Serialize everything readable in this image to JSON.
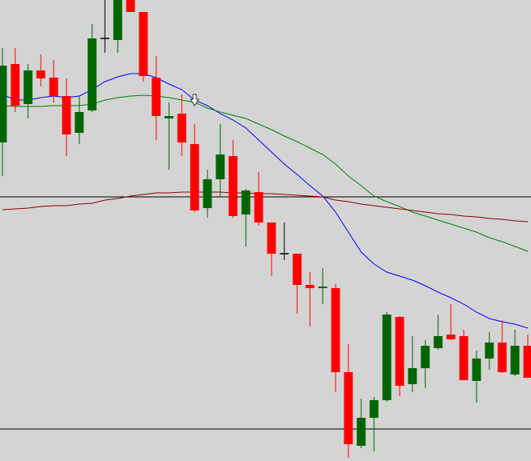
{
  "chart_data": {
    "type": "candlestick",
    "ylim": [
      0,
      576
    ],
    "open": [
      398,
      496,
      446,
      488,
      479,
      456,
      410,
      438,
      528,
      526,
      576,
      561,
      479,
      428,
      434,
      396,
      316,
      352,
      381,
      308,
      336,
      298,
      259,
      259,
      220,
      216,
      216,
      111,
      19,
      54,
      76,
      180,
      96,
      116,
      141,
      158,
      156,
      100,
      128,
      148,
      108,
      144
    ],
    "high": [
      516,
      516,
      496,
      508,
      501,
      478,
      456,
      546,
      576,
      576,
      576,
      561,
      506,
      448,
      458,
      421,
      364,
      421,
      401,
      340,
      361,
      298,
      298,
      259,
      236,
      241,
      221,
      146,
      78,
      80,
      186,
      181,
      156,
      151,
      183,
      196,
      164,
      138,
      161,
      176,
      164,
      158
    ],
    "low": [
      356,
      436,
      428,
      468,
      448,
      381,
      396,
      436,
      510,
      510,
      561,
      474,
      401,
      364,
      381,
      311,
      304,
      331,
      304,
      268,
      294,
      231,
      251,
      184,
      168,
      196,
      86,
      4,
      16,
      12,
      74,
      81,
      86,
      91,
      139,
      151,
      101,
      73,
      114,
      110,
      106,
      104
    ],
    "close": [
      494,
      444,
      488,
      478,
      456,
      408,
      436,
      528,
      528,
      576,
      561,
      481,
      431,
      431,
      398,
      313,
      352,
      383,
      306,
      338,
      298,
      259,
      259,
      220,
      216,
      218,
      111,
      21,
      54,
      76,
      183,
      94,
      116,
      144,
      156,
      152,
      101,
      128,
      148,
      111,
      144,
      104
    ],
    "up_color": "#006400",
    "down_color": "#ff0000",
    "doji_color": "#000000",
    "series": [
      {
        "color": "#0000ff",
        "values": [
          458,
          451,
          451,
          454,
          456,
          454,
          456,
          464,
          474,
          480,
          484,
          484,
          479,
          471,
          464,
          451,
          444,
          434,
          426,
          416,
          401,
          386,
          371,
          358,
          344,
          331,
          311,
          286,
          261,
          246,
          236,
          231,
          226,
          219,
          211,
          204,
          196,
          186,
          178,
          174,
          171,
          166
        ]
      },
      {
        "color": "#008000",
        "values": [
          444,
          443,
          443,
          443,
          444,
          444,
          444,
          446,
          451,
          454,
          456,
          457,
          456,
          454,
          451,
          448,
          441,
          436,
          432,
          428,
          421,
          414,
          406,
          399,
          391,
          383,
          371,
          356,
          344,
          331,
          324,
          318,
          311,
          306,
          301,
          296,
          291,
          286,
          279,
          274,
          268,
          262
        ]
      },
      {
        "color": "#8b0000",
        "values": [
          314,
          315,
          316,
          318,
          319,
          319,
          321,
          322,
          326,
          328,
          331,
          333,
          335,
          335,
          336,
          336,
          336,
          336,
          335,
          335,
          334,
          334,
          333,
          332,
          331,
          330,
          326,
          324,
          321,
          319,
          317,
          315,
          313,
          311,
          309,
          308,
          306,
          305,
          303,
          302,
          300,
          299
        ]
      }
    ],
    "hlines": [
      330,
      40
    ],
    "signal": {
      "index": 15,
      "value": 446
    }
  }
}
